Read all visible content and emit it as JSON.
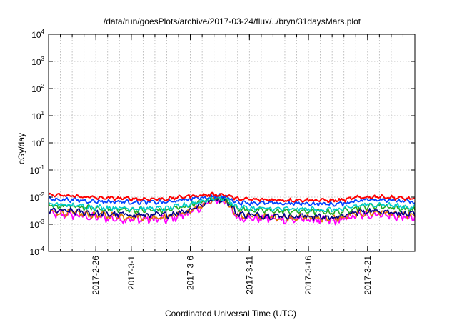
{
  "chart_data": {
    "type": "line",
    "title": "/data/run/goesPlots/archive/2017-03-24/flux/../bryn/31daysMars.plot",
    "xlabel": "Coordinated Universal Time (UTC)",
    "ylabel": "cGy/day",
    "yscale": "log",
    "ylim": [
      0.0001,
      10000
    ],
    "yticks": [
      {
        "base": "10",
        "exp": "4",
        "value": 10000
      },
      {
        "base": "10",
        "exp": "3",
        "value": 1000
      },
      {
        "base": "10",
        "exp": "2",
        "value": 100
      },
      {
        "base": "10",
        "exp": "1",
        "value": 10
      },
      {
        "base": "10",
        "exp": "0",
        "value": 1
      },
      {
        "base": "10",
        "exp": "-1",
        "value": 0.1
      },
      {
        "base": "10",
        "exp": "-2",
        "value": 0.01
      },
      {
        "base": "10",
        "exp": "-3",
        "value": 0.001
      },
      {
        "base": "10",
        "exp": "-4",
        "value": 0.0001
      }
    ],
    "xlim": [
      "2017-02-22",
      "2017-03-25"
    ],
    "xticks": [
      "2017-2-26",
      "2017-3-1",
      "2017-3-6",
      "2017-3-11",
      "2017-3-16",
      "2017-3-21"
    ],
    "xtick_dates": [
      "2017-02-26",
      "2017-03-01",
      "2017-03-06",
      "2017-03-11",
      "2017-03-16",
      "2017-03-21"
    ],
    "grid": true,
    "legend": "none",
    "x": [
      "2017-02-22",
      "2017-02-24",
      "2017-02-26",
      "2017-02-28",
      "2017-03-02",
      "2017-03-04",
      "2017-03-06",
      "2017-03-08",
      "2017-03-09",
      "2017-03-10",
      "2017-03-12",
      "2017-03-14",
      "2017-03-16",
      "2017-03-18",
      "2017-03-19",
      "2017-03-20",
      "2017-03-22",
      "2017-03-24",
      "2017-03-25"
    ],
    "series": [
      {
        "color": "#ff0000",
        "values": [
          0.012,
          0.011,
          0.0095,
          0.009,
          0.0085,
          0.0085,
          0.011,
          0.0125,
          0.012,
          0.0085,
          0.008,
          0.0078,
          0.0078,
          0.0075,
          0.0078,
          0.0095,
          0.0105,
          0.009,
          0.0085
        ]
      },
      {
        "color": "#0044ff",
        "values": [
          0.0085,
          0.008,
          0.007,
          0.0068,
          0.0065,
          0.0065,
          0.0085,
          0.011,
          0.0105,
          0.0065,
          0.006,
          0.0058,
          0.0058,
          0.0055,
          0.0058,
          0.0075,
          0.0085,
          0.007,
          0.0065
        ]
      },
      {
        "color": "#00cccc",
        "values": [
          0.0055,
          0.005,
          0.0043,
          0.004,
          0.0038,
          0.0038,
          0.0055,
          0.0095,
          0.009,
          0.0042,
          0.0038,
          0.0036,
          0.0036,
          0.0034,
          0.0036,
          0.0048,
          0.0055,
          0.0045,
          0.0042
        ]
      },
      {
        "color": "#22aa22",
        "values": [
          0.0048,
          0.0045,
          0.0038,
          0.0035,
          0.0033,
          0.0033,
          0.005,
          0.009,
          0.0088,
          0.0036,
          0.0032,
          0.003,
          0.003,
          0.0028,
          0.003,
          0.0042,
          0.0048,
          0.0038,
          0.0035
        ]
      },
      {
        "color": "#000088",
        "values": [
          0.0032,
          0.003,
          0.0025,
          0.0023,
          0.0022,
          0.0022,
          0.0035,
          0.0085,
          0.0082,
          0.0024,
          0.0021,
          0.002,
          0.002,
          0.0018,
          0.002,
          0.0028,
          0.0032,
          0.0025,
          0.0022
        ]
      },
      {
        "color": "#dd7700",
        "values": [
          0.0028,
          0.0026,
          0.0022,
          0.002,
          0.0019,
          0.0019,
          0.003,
          0.008,
          0.0078,
          0.0021,
          0.0019,
          0.0018,
          0.0018,
          0.0016,
          0.0018,
          0.0025,
          0.0028,
          0.0022,
          0.002
        ]
      },
      {
        "color": "#ff00ff",
        "values": [
          0.0025,
          0.0022,
          0.0018,
          0.0016,
          0.0015,
          0.0015,
          0.0026,
          0.0078,
          0.0075,
          0.0018,
          0.0016,
          0.0015,
          0.0015,
          0.0013,
          0.0015,
          0.0021,
          0.0024,
          0.0018,
          0.0016
        ]
      }
    ]
  }
}
